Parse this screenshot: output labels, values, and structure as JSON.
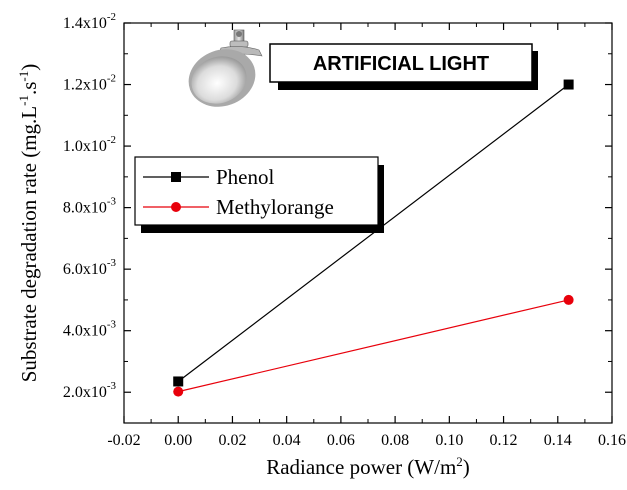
{
  "chart_data": {
    "type": "line",
    "title": "",
    "banner": "ARTIFICIAL LIGHT",
    "xlabel": "Radiance power (W/m",
    "xlabel_sup": "2",
    "xlabel_end": ")",
    "ylabel": "Substrate degradation rate (mg.L",
    "ylabel_sup1": "-1",
    "ylabel_mid": ".s",
    "ylabel_sup2": "-1",
    "ylabel_end": ")",
    "xlim": [
      -0.02,
      0.16
    ],
    "ylim": [
      0.001,
      0.014
    ],
    "x_ticks": [
      -0.02,
      0.0,
      0.02,
      0.04,
      0.06,
      0.08,
      0.1,
      0.12,
      0.14,
      0.16
    ],
    "x_tick_labels": [
      "-0.02",
      "0.00",
      "0.02",
      "0.04",
      "0.06",
      "0.08",
      "0.10",
      "0.12",
      "0.14",
      "0.16"
    ],
    "y_ticks": [
      {
        "value": 0.002,
        "mantissa": "2.0x10",
        "exp": "-3"
      },
      {
        "value": 0.004,
        "mantissa": "4.0x10",
        "exp": "-3"
      },
      {
        "value": 0.006,
        "mantissa": "6.0x10",
        "exp": "-3"
      },
      {
        "value": 0.008,
        "mantissa": "8.0x10",
        "exp": "-3"
      },
      {
        "value": 0.01,
        "mantissa": "1.0x10",
        "exp": "-2"
      },
      {
        "value": 0.012,
        "mantissa": "1.2x10",
        "exp": "-2"
      },
      {
        "value": 0.014,
        "mantissa": "1.4x10",
        "exp": "-2"
      }
    ],
    "grid": false,
    "legend_position": "center-left",
    "series": [
      {
        "name": "Phenol",
        "marker": "square",
        "color": "#000000",
        "x": [
          0.0,
          0.144
        ],
        "y": [
          0.00235,
          0.012
        ]
      },
      {
        "name": "Methylorange",
        "marker": "circle",
        "color": "#e8000b",
        "x": [
          0.0,
          0.144
        ],
        "y": [
          0.00202,
          0.005
        ]
      }
    ]
  },
  "lamp_icon": "lamp-icon"
}
